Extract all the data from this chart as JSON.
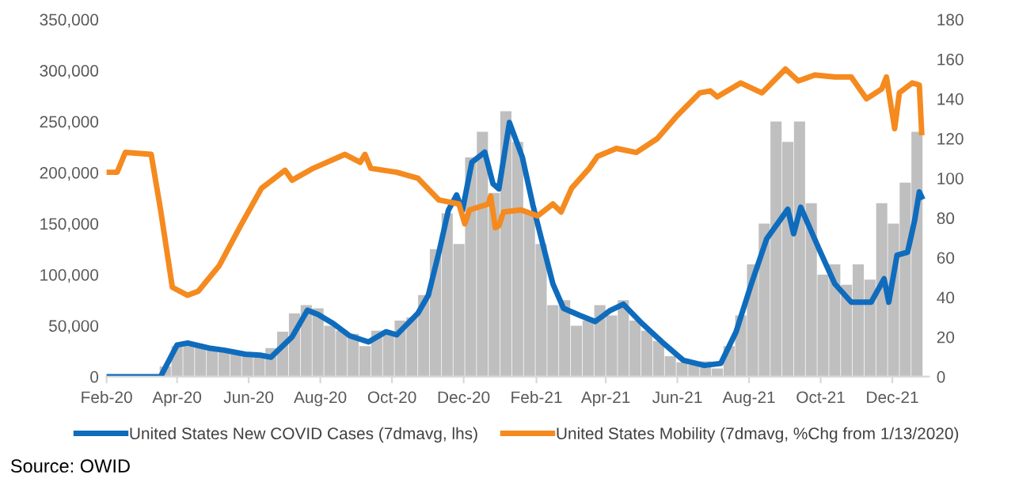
{
  "chart_data": {
    "type": "line",
    "xlim": [
      "2020-02-01",
      "2022-01-01"
    ],
    "xticks": [
      {
        "value": "2020-02-01",
        "label": "Feb-20"
      },
      {
        "value": "2020-04-01",
        "label": "Apr-20"
      },
      {
        "value": "2020-06-01",
        "label": "Jun-20"
      },
      {
        "value": "2020-08-01",
        "label": "Aug-20"
      },
      {
        "value": "2020-10-01",
        "label": "Oct-20"
      },
      {
        "value": "2020-12-01",
        "label": "Dec-20"
      },
      {
        "value": "2021-02-01",
        "label": "Feb-21"
      },
      {
        "value": "2021-04-01",
        "label": "Apr-21"
      },
      {
        "value": "2021-06-01",
        "label": "Jun-21"
      },
      {
        "value": "2021-08-01",
        "label": "Aug-21"
      },
      {
        "value": "2021-10-01",
        "label": "Oct-21"
      },
      {
        "value": "2021-12-01",
        "label": "Dec-21"
      }
    ],
    "ylim": [
      0,
      350000
    ],
    "yticks": [
      0,
      {
        "value": 50000,
        "label": "50,000"
      },
      {
        "value": 100000,
        "label": "100,000"
      },
      {
        "value": 150000,
        "label": "150,000"
      },
      {
        "value": 200000,
        "label": "200,000"
      },
      {
        "value": 250000,
        "label": "250,000"
      },
      {
        "value": 300000,
        "label": "300,000"
      },
      {
        "value": 350000,
        "label": "350,000"
      }
    ],
    "y2lim": [
      0,
      180
    ],
    "y2ticks": [
      0,
      20,
      40,
      60,
      80,
      100,
      120,
      140,
      160,
      180
    ],
    "grid": false,
    "legend": "bottom",
    "series": [
      {
        "type": "bar",
        "color": "#bfbfbf",
        "x": [
          "2020-02-01",
          "2020-02-11",
          "2020-02-21",
          "2020-03-02",
          "2020-03-12",
          "2020-03-22",
          "2020-04-01",
          "2020-04-11",
          "2020-04-21",
          "2020-05-01",
          "2020-05-11",
          "2020-05-21",
          "2020-05-31",
          "2020-06-10",
          "2020-06-20",
          "2020-06-30",
          "2020-07-10",
          "2020-07-20",
          "2020-07-30",
          "2020-08-09",
          "2020-08-19",
          "2020-08-29",
          "2020-09-08",
          "2020-09-18",
          "2020-09-28",
          "2020-10-08",
          "2020-10-18",
          "2020-10-28",
          "2020-11-07",
          "2020-11-17",
          "2020-11-27",
          "2020-12-07",
          "2020-12-17",
          "2020-12-27",
          "2021-01-06",
          "2021-01-16",
          "2021-01-26",
          "2021-02-05",
          "2021-02-15",
          "2021-02-25",
          "2021-03-07",
          "2021-03-17",
          "2021-03-27",
          "2021-04-06",
          "2021-04-16",
          "2021-04-26",
          "2021-05-06",
          "2021-05-16",
          "2021-05-26",
          "2021-06-05",
          "2021-06-15",
          "2021-06-25",
          "2021-07-05",
          "2021-07-15",
          "2021-07-25",
          "2021-08-04",
          "2021-08-14",
          "2021-08-24",
          "2021-09-03",
          "2021-09-13",
          "2021-09-23",
          "2021-10-03",
          "2021-10-13",
          "2021-10-23",
          "2021-11-02",
          "2021-11-12",
          "2021-11-22",
          "2021-12-02",
          "2021-12-12",
          "2021-12-22"
        ],
        "values": [
          0,
          0,
          0,
          0,
          1000,
          10000,
          30000,
          33000,
          30000,
          29000,
          24000,
          24000,
          20000,
          21000,
          28000,
          44000,
          62000,
          70000,
          67000,
          50000,
          45000,
          42000,
          30000,
          45000,
          42000,
          55000,
          58000,
          80000,
          125000,
          160000,
          130000,
          215000,
          240000,
          180000,
          260000,
          230000,
          160000,
          130000,
          70000,
          75000,
          50000,
          55000,
          70000,
          60000,
          75000,
          55000,
          45000,
          35000,
          20000,
          14000,
          12000,
          15000,
          8000,
          30000,
          60000,
          110000,
          150000,
          250000,
          230000,
          250000,
          170000,
          100000,
          110000,
          90000,
          110000,
          95000,
          170000,
          150000,
          190000,
          240000
        ]
      },
      {
        "name": "United States New COVID Cases (7dmavg, lhs)",
        "color": "#0f6cbd",
        "x": [
          "2020-02-01",
          "2020-03-18",
          "2020-04-01",
          "2020-04-10",
          "2020-04-28",
          "2020-05-11",
          "2020-05-29",
          "2020-06-11",
          "2020-06-20",
          "2020-07-08",
          "2020-07-21",
          "2020-07-30",
          "2020-08-12",
          "2020-08-26",
          "2020-09-11",
          "2020-09-26",
          "2020-10-05",
          "2020-10-23",
          "2020-11-01",
          "2020-11-10",
          "2020-11-18",
          "2020-11-25",
          "2020-11-30",
          "2020-12-08",
          "2020-12-19",
          "2020-12-26",
          "2020-12-31",
          "2021-01-09",
          "2021-01-20",
          "2021-01-29",
          "2021-02-07",
          "2021-02-15",
          "2021-02-24",
          "2021-03-10",
          "2021-03-23",
          "2021-04-05",
          "2021-04-16",
          "2021-05-02",
          "2021-05-19",
          "2021-06-06",
          "2021-06-24",
          "2021-07-08",
          "2021-07-21",
          "2021-08-03",
          "2021-08-16",
          "2021-09-03",
          "2021-09-08",
          "2021-09-14",
          "2021-09-30",
          "2021-10-13",
          "2021-10-27",
          "2021-11-13",
          "2021-11-24",
          "2021-11-28",
          "2021-12-05",
          "2021-12-14",
          "2021-12-20",
          "2021-12-24",
          "2021-12-26"
        ],
        "values": [
          0,
          0,
          31000,
          33000,
          28000,
          26000,
          22000,
          21000,
          19000,
          39000,
          65000,
          61000,
          52000,
          40000,
          34000,
          44000,
          41000,
          62000,
          80000,
          122000,
          163000,
          178000,
          163000,
          210000,
          220000,
          189000,
          184000,
          249000,
          215000,
          168000,
          127000,
          91000,
          67000,
          60000,
          54000,
          65000,
          71000,
          52000,
          34000,
          16000,
          11000,
          13000,
          44000,
          91000,
          135000,
          164000,
          140000,
          166000,
          124000,
          91000,
          73000,
          73000,
          96000,
          73000,
          119000,
          122000,
          153000,
          181000,
          176000
        ]
      },
      {
        "axis": "y2",
        "name": "United States Mobility (7dmavg, %Chg from 1/13/2020)",
        "color": "#f58a1f",
        "x": [
          "2020-02-01",
          "2020-02-10",
          "2020-02-17",
          "2020-03-10",
          "2020-03-18",
          "2020-03-28",
          "2020-04-10",
          "2020-04-19",
          "2020-05-07",
          "2020-05-25",
          "2020-06-12",
          "2020-07-02",
          "2020-07-08",
          "2020-07-26",
          "2020-08-22",
          "2020-09-04",
          "2020-09-08",
          "2020-09-13",
          "2020-10-05",
          "2020-10-23",
          "2020-11-10",
          "2020-11-27",
          "2020-12-02",
          "2020-12-06",
          "2020-12-22",
          "2020-12-24",
          "2020-12-28",
          "2020-12-31",
          "2021-01-04",
          "2021-01-19",
          "2021-02-02",
          "2021-02-15",
          "2021-02-22",
          "2021-03-03",
          "2021-03-18",
          "2021-03-25",
          "2021-04-10",
          "2021-04-27",
          "2021-05-15",
          "2021-05-31",
          "2021-06-20",
          "2021-06-29",
          "2021-07-05",
          "2021-07-25",
          "2021-08-12",
          "2021-09-01",
          "2021-09-12",
          "2021-09-26",
          "2021-10-13",
          "2021-10-27",
          "2021-11-09",
          "2021-11-22",
          "2021-11-26",
          "2021-12-03",
          "2021-12-07",
          "2021-12-18",
          "2021-12-24",
          "2021-12-26"
        ],
        "values": [
          103,
          103,
          113,
          112,
          84,
          45,
          41,
          43,
          56,
          76,
          95,
          104,
          99,
          105,
          112,
          108,
          112,
          105,
          103,
          100,
          89,
          87,
          77,
          84,
          87,
          91,
          75,
          76,
          83,
          84,
          81,
          87,
          83,
          95,
          105,
          111,
          115,
          113,
          120,
          131,
          143,
          144,
          141,
          148,
          143,
          155,
          149,
          152,
          151,
          151,
          140,
          145,
          151,
          125,
          143,
          148,
          147,
          123
        ]
      }
    ],
    "annotations": [
      "Source: OWID"
    ]
  }
}
